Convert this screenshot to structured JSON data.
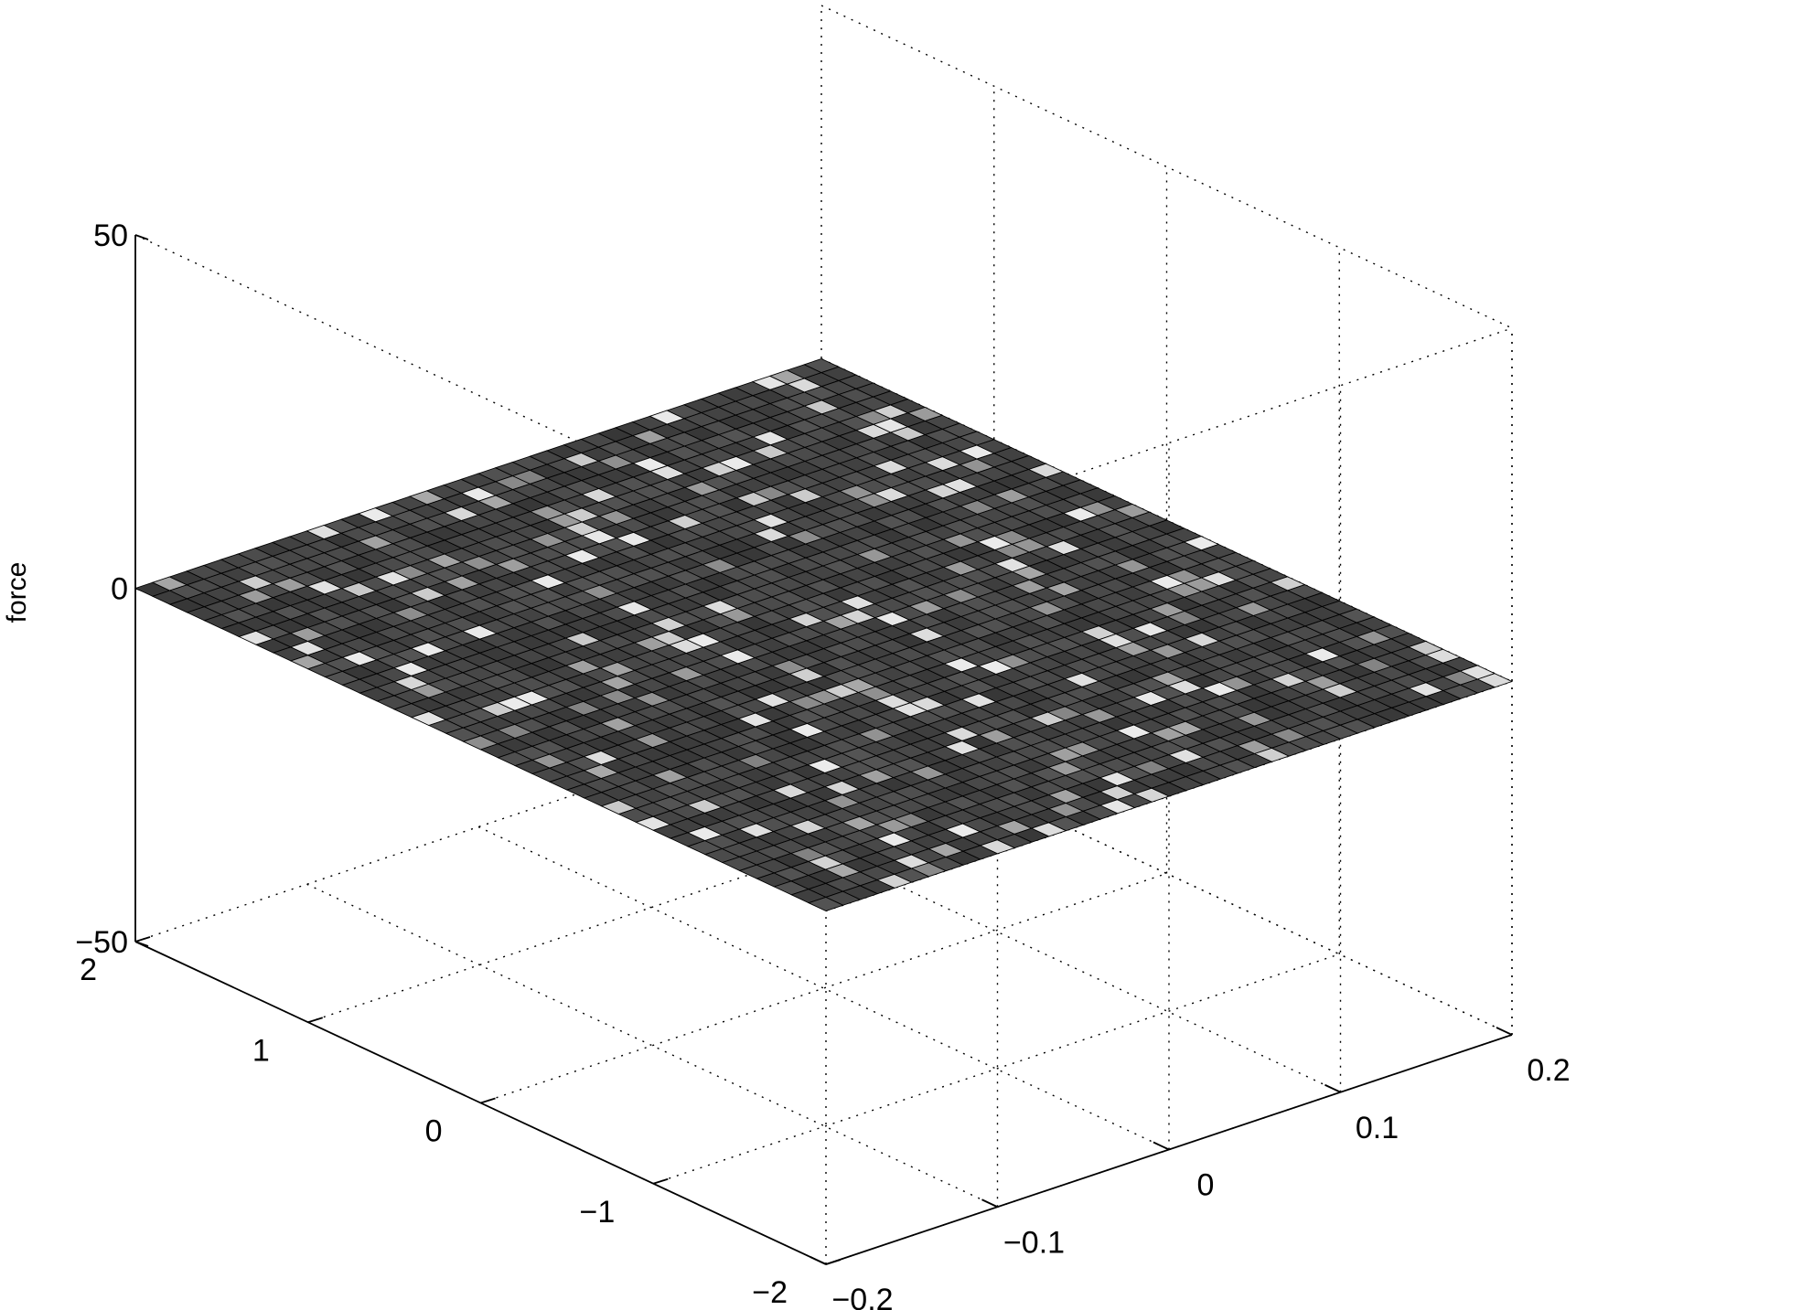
{
  "chart_data": {
    "type": "surface",
    "x_axis": {
      "range": [
        -0.2,
        0.2
      ],
      "ticks": [
        -0.2,
        -0.1,
        0,
        0.1,
        0.2
      ],
      "tick_labels": [
        "−0.2",
        "−0.1",
        "0",
        "0.1",
        "0.2"
      ],
      "label": ""
    },
    "y_axis": {
      "range": [
        -2,
        2
      ],
      "ticks": [
        -2,
        -1,
        0,
        1,
        2
      ],
      "tick_labels": [
        "−2",
        "−1",
        "0",
        "1",
        "2"
      ],
      "label": ""
    },
    "z_axis": {
      "range": [
        -50,
        50
      ],
      "ticks": [
        -50,
        0,
        50
      ],
      "tick_labels": [
        "−50",
        "0",
        "50"
      ],
      "label": "force"
    },
    "grid": true,
    "colormap": "gray",
    "mesh_resolution": [
      40,
      40
    ],
    "surface": {
      "z_level": 0,
      "description": "flat surface at force = 0 across the whole x–y domain"
    }
  }
}
